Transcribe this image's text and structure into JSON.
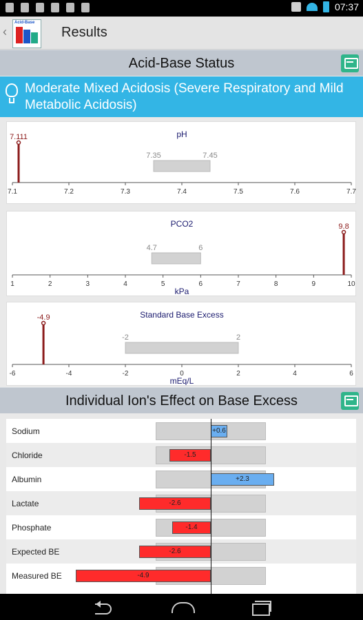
{
  "status_bar": {
    "time": "07:37"
  },
  "action_bar": {
    "title": "Results",
    "back_glyph": "‹",
    "app_icon": "acid-base-app-icon"
  },
  "status_section": {
    "title": "Acid-Base Status",
    "comment_icon": "comment-icon"
  },
  "diagnosis": {
    "text": "Moderate Mixed Acidosis (Severe Respiratory and Mild Metabolic Acidosis)",
    "icon": "lightbulb-icon"
  },
  "ion_section": {
    "title": "Individual Ion's Effect on Base Excess",
    "comment_icon": "comment-icon"
  },
  "chart_data": [
    {
      "type": "bar",
      "title": "pH",
      "xlabel": "",
      "xlim": [
        7.1,
        7.7
      ],
      "ticks": [
        "7.1",
        "7.2",
        "7.3",
        "7.4",
        "7.5",
        "7.6",
        "7.7"
      ],
      "tick_values": [
        7.1,
        7.2,
        7.3,
        7.4,
        7.5,
        7.6,
        7.7
      ],
      "normal_range": {
        "low": 7.35,
        "high": 7.45,
        "low_label": "7.35",
        "high_label": "7.45"
      },
      "marker": {
        "value": 7.111,
        "label": "7.111"
      }
    },
    {
      "type": "bar",
      "title": "PCO2",
      "xlabel": "kPa",
      "xlim": [
        1,
        10
      ],
      "ticks": [
        "1",
        "2",
        "3",
        "4",
        "5",
        "6",
        "7",
        "8",
        "9",
        "10"
      ],
      "tick_values": [
        1,
        2,
        3,
        4,
        5,
        6,
        7,
        8,
        9,
        10
      ],
      "normal_range": {
        "low": 4.7,
        "high": 6,
        "low_label": "4.7",
        "high_label": "6"
      },
      "marker": {
        "value": 9.8,
        "label": "9.8"
      }
    },
    {
      "type": "bar",
      "title": "Standard Base Excess",
      "xlabel": "mEq/L",
      "xlim": [
        -6,
        6
      ],
      "ticks": [
        "-6",
        "-4",
        "-2",
        "0",
        "2",
        "4",
        "6"
      ],
      "tick_values": [
        -6,
        -4,
        -2,
        0,
        2,
        4,
        6
      ],
      "normal_range": {
        "low": -2,
        "high": 2,
        "low_label": "-2",
        "high_label": "2"
      },
      "marker": {
        "value": -4.9,
        "label": "-4.9"
      }
    },
    {
      "type": "bar",
      "title": "Individual Ion's Effect on Base Excess",
      "categories": [
        "Sodium",
        "Chloride",
        "Albumin",
        "Lactate",
        "Phosphate",
        "Expected BE",
        "Measured BE"
      ],
      "values": [
        0.6,
        -1.5,
        2.3,
        -2.6,
        -1.4,
        -2.6,
        -4.9
      ],
      "labels": [
        "+0.6",
        "-1.5",
        "+2.3",
        "-2.6",
        "-1.4",
        "-2.6",
        "-4.9"
      ],
      "normal_range": {
        "low": -2,
        "high": 2
      },
      "xlim": [
        -5,
        5
      ],
      "colors": {
        "negative": "#ff2b2b",
        "positive": "#6aaef0"
      }
    }
  ]
}
